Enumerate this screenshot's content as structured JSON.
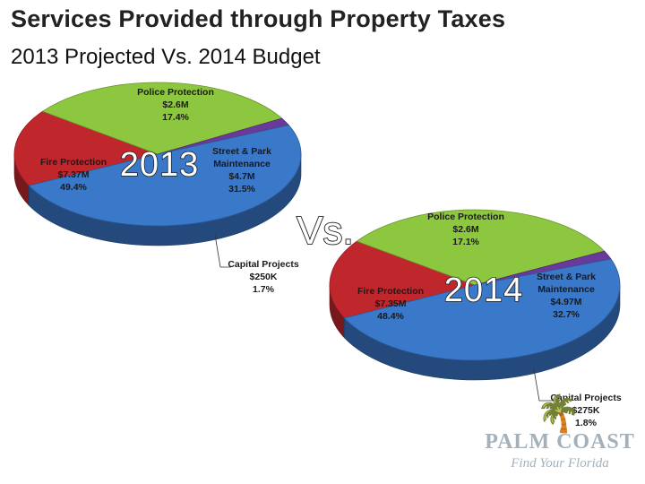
{
  "page": {
    "title": "Services Provided through Property Taxes",
    "subtitle": "2013 Projected Vs. 2014 Budget",
    "vs_label": "Vs."
  },
  "chart_data": [
    {
      "type": "pie",
      "year_label": "2013",
      "slices": [
        {
          "name": "Police Protection",
          "amount": "$2.6M",
          "percent": 17.4,
          "percent_label": "17.4%",
          "color": "#c0272d"
        },
        {
          "name": "Street & Park Maintenance",
          "amount": "$4.7M",
          "percent": 31.5,
          "percent_label": "31.5%",
          "color": "#8dc63f"
        },
        {
          "name": "Capital Projects",
          "amount": "$250K",
          "percent": 1.7,
          "percent_label": "1.7%",
          "color": "#6a3a9a"
        },
        {
          "name": "Fire Protection",
          "amount": "$7.37M",
          "percent": 49.4,
          "percent_label": "49.4%",
          "color": "#3a78c9"
        }
      ]
    },
    {
      "type": "pie",
      "year_label": "2014",
      "slices": [
        {
          "name": "Police Protection",
          "amount": "$2.6M",
          "percent": 17.1,
          "percent_label": "17.1%",
          "color": "#c0272d"
        },
        {
          "name": "Street & Park Maintenance",
          "amount": "$4.97M",
          "percent": 32.7,
          "percent_label": "32.7%",
          "color": "#8dc63f"
        },
        {
          "name": "Capital Projects",
          "amount": "$275K",
          "percent": 1.8,
          "percent_label": "1.8%",
          "color": "#6a3a9a"
        },
        {
          "name": "Fire Protection",
          "amount": "$7.35M",
          "percent": 48.4,
          "percent_label": "48.4%",
          "color": "#3a78c9"
        }
      ]
    }
  ],
  "logo": {
    "brand": "PALM COAST",
    "tagline": "Find Your Florida",
    "icon": "palm-tree-icon"
  }
}
